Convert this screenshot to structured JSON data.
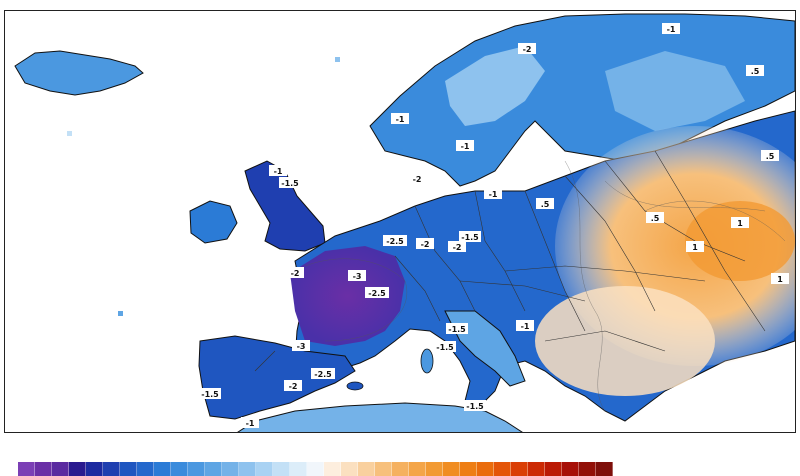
{
  "map": {
    "contour_labels": [
      "-1",
      "-1.5",
      "-2",
      "-2.5",
      "-3",
      "-1",
      "-1.5",
      "-1",
      "-2",
      "-2.5",
      "-1.5",
      "-3",
      "-2",
      "-1",
      "-1.5",
      "-1.5",
      "-2",
      "-1",
      "-2",
      ".5",
      "1",
      "1",
      "1",
      ".5",
      ".5",
      ".5",
      "-1",
      "-1",
      "-1.5",
      "-2",
      "-2.5"
    ]
  },
  "legend": {
    "colors": [
      "#7b3fb5",
      "#6a2fa6",
      "#5a2aa0",
      "#2a1a8f",
      "#1d2aa0",
      "#1f3fb0",
      "#1f56c0",
      "#2468cc",
      "#2b7bd6",
      "#3a8bdc",
      "#4b98e0",
      "#5ea5e4",
      "#74b2e8",
      "#8ec2ee",
      "#a9d2f3",
      "#c3e0f6",
      "#dcedf9",
      "#f1f6fb",
      "#fdeede",
      "#fbe0c0",
      "#f9d09e",
      "#f7c07c",
      "#f5b160",
      "#f4a548",
      "#f29a33",
      "#f08d22",
      "#ee7e14",
      "#ea6c0c",
      "#e45508",
      "#da3f06",
      "#cc2a05",
      "#bb1a05",
      "#a70f07",
      "#921008",
      "#7e0f0a"
    ]
  }
}
